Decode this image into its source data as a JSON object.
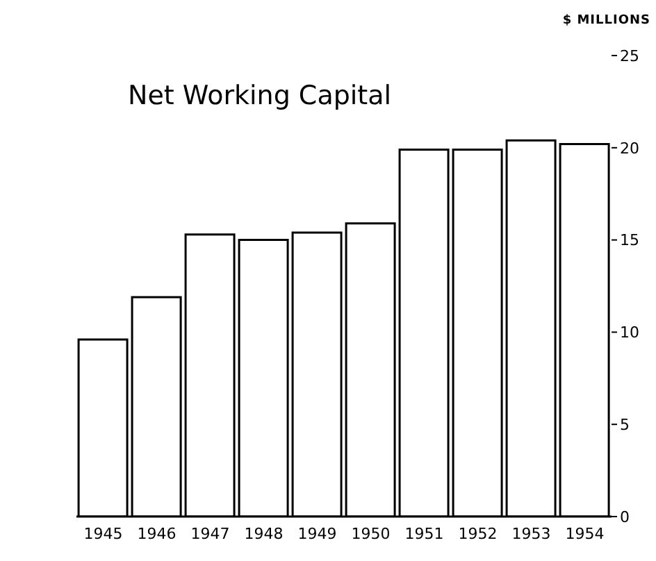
{
  "chart_data": {
    "type": "bar",
    "title": "Net Working Capital",
    "ylabel": "$ MILLIONS",
    "categories": [
      "1945",
      "1946",
      "1947",
      "1948",
      "1949",
      "1950",
      "1951",
      "1952",
      "1953",
      "1954"
    ],
    "values": [
      9.6,
      11.9,
      15.3,
      15.0,
      15.4,
      15.9,
      19.9,
      19.9,
      20.4,
      20.2
    ],
    "color": "#ffffff",
    "ylim": [
      0,
      25
    ],
    "yticks": [
      0,
      5,
      10,
      15,
      20,
      25
    ],
    "grid": false
  }
}
